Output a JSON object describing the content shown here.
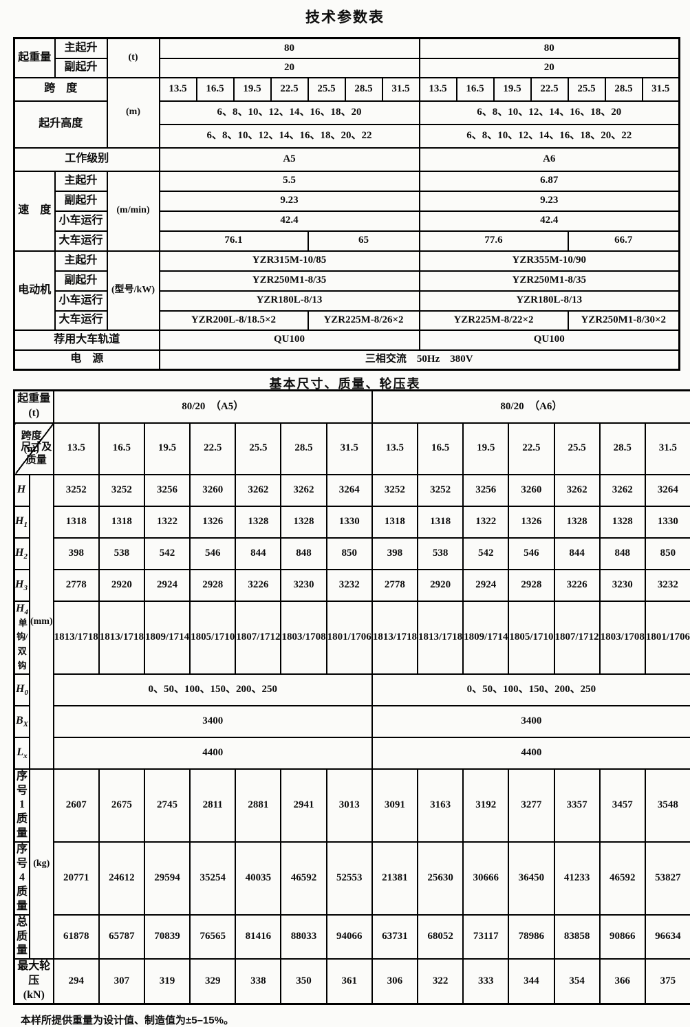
{
  "page": {
    "title_tech": "技术参数表",
    "title_dims": "基本尺寸、质量、轮压表",
    "footnote": "本样所提供重量为设计值、制造值为±5–15%。"
  },
  "tech": {
    "lifting": {
      "group": "起重量",
      "main_label": "主起升",
      "aux_label": "副起升",
      "unit": "(t)",
      "main_a5": "80",
      "main_a6": "80",
      "aux_a5": "20",
      "aux_a6": "20"
    },
    "span": {
      "label": "跨　度",
      "unit": "(m)",
      "values": [
        "13.5",
        "16.5",
        "19.5",
        "22.5",
        "25.5",
        "28.5",
        "31.5"
      ]
    },
    "height": {
      "label": "起升高度",
      "main": "6、8、10、12、14、16、18、20",
      "aux": "6、8、10、12、14、16、18、20、22"
    },
    "duty": {
      "label": "工作级别",
      "a5": "A5",
      "a6": "A6"
    },
    "speed": {
      "group": "速　度",
      "unit": "(m/min)",
      "rows": [
        {
          "label": "主起升",
          "a5": "5.5",
          "a6": "6.87"
        },
        {
          "label": "副起升",
          "a5": "9.23",
          "a6": "9.23"
        },
        {
          "label": "小车运行",
          "a5": "42.4",
          "a6": "42.4"
        }
      ],
      "travel": {
        "label": "大车运行",
        "a5_short": "76.1",
        "a5_long": "65",
        "a6_short": "77.6",
        "a6_long": "66.7"
      }
    },
    "motor": {
      "group": "电动机",
      "unit": "(型号/kW)",
      "rows": [
        {
          "label": "主起升",
          "a5": "YZR315M-10/85",
          "a6": "YZR355M-10/90"
        },
        {
          "label": "副起升",
          "a5": "YZR250M1-8/35",
          "a6": "YZR250M1-8/35"
        },
        {
          "label": "小车运行",
          "a5": "YZR180L-8/13",
          "a6": "YZR180L-8/13"
        }
      ],
      "travel": {
        "label": "大车运行",
        "a5_short": "YZR200L-8/18.5×2",
        "a5_long": "YZR225M-8/26×2",
        "a6_short": "YZR225M-8/22×2",
        "a6_long": "YZR250M1-8/30×2"
      }
    },
    "rail": {
      "label": "荐用大车轨道",
      "a5": "QU100",
      "a6": "QU100"
    },
    "power": {
      "label": "电　源",
      "value": "三相交流　50Hz　380V"
    }
  },
  "dims": {
    "capacity": {
      "label": "起重量(t)",
      "a5": "80/20　（A5）",
      "a6": "80/20　（A6）"
    },
    "corner": {
      "top": "跨度(m)",
      "bottom": "尺寸及质量"
    },
    "spans": [
      "13.5",
      "16.5",
      "19.5",
      "22.5",
      "25.5",
      "28.5",
      "31.5"
    ],
    "unit_mm": "(mm)",
    "unit_kg": "(kg)",
    "rows_mm": [
      {
        "base": "H",
        "sub": "",
        "extra": "",
        "a5": [
          "3252",
          "3252",
          "3256",
          "3260",
          "3262",
          "3262",
          "3264"
        ],
        "a6": [
          "3252",
          "3252",
          "3256",
          "3260",
          "3262",
          "3262",
          "3264"
        ]
      },
      {
        "base": "H",
        "sub": "1",
        "extra": "",
        "a5": [
          "1318",
          "1318",
          "1322",
          "1326",
          "1328",
          "1328",
          "1330"
        ],
        "a6": [
          "1318",
          "1318",
          "1322",
          "1326",
          "1328",
          "1328",
          "1330"
        ]
      },
      {
        "base": "H",
        "sub": "2",
        "extra": "",
        "a5": [
          "398",
          "538",
          "542",
          "546",
          "844",
          "848",
          "850"
        ],
        "a6": [
          "398",
          "538",
          "542",
          "546",
          "844",
          "848",
          "850"
        ]
      },
      {
        "base": "H",
        "sub": "3",
        "extra": "",
        "a5": [
          "2778",
          "2920",
          "2924",
          "2928",
          "3226",
          "3230",
          "3232"
        ],
        "a6": [
          "2778",
          "2920",
          "2924",
          "2928",
          "3226",
          "3230",
          "3232"
        ]
      },
      {
        "base": "H",
        "sub": "4",
        "extra": "单钩/双钩",
        "a5": [
          "1813/1718",
          "1813/1718",
          "1809/1714",
          "1805/1710",
          "1807/1712",
          "1803/1708",
          "1801/1706"
        ],
        "a6": [
          "1813/1718",
          "1813/1718",
          "1809/1714",
          "1805/1710",
          "1807/1712",
          "1803/1708",
          "1801/1706"
        ]
      }
    ],
    "rows_span7": [
      {
        "base": "H",
        "sub": "0",
        "a5": "0、50、100、150、200、250",
        "a6": "0、50、100、150、200、250"
      },
      {
        "base": "B",
        "sub": "X",
        "a5": "3400",
        "a6": "3400"
      },
      {
        "base": "L",
        "sub": "x",
        "a5": "4400",
        "a6": "4400"
      }
    ],
    "rows_kg": [
      {
        "label": "序号 1 质量",
        "a5": [
          "2607",
          "2675",
          "2745",
          "2811",
          "2881",
          "2941",
          "3013"
        ],
        "a6": [
          "3091",
          "3163",
          "3192",
          "3277",
          "3357",
          "3457",
          "3548"
        ]
      },
      {
        "label": "序号 4 质量",
        "a5": [
          "20771",
          "24612",
          "29594",
          "35254",
          "40035",
          "46592",
          "52553"
        ],
        "a6": [
          "21381",
          "25630",
          "30666",
          "36450",
          "41233",
          "46592",
          "53827"
        ]
      },
      {
        "label": "总质量",
        "a5": [
          "61878",
          "65787",
          "70839",
          "76565",
          "81416",
          "88033",
          "94066"
        ],
        "a6": [
          "63731",
          "68052",
          "73117",
          "78986",
          "83858",
          "90866",
          "96634"
        ]
      }
    ],
    "wheel": {
      "label": "最大轮压　(kN)",
      "a5": [
        "294",
        "307",
        "319",
        "329",
        "338",
        "350",
        "361"
      ],
      "a6": [
        "306",
        "322",
        "333",
        "344",
        "354",
        "366",
        "375"
      ]
    }
  }
}
